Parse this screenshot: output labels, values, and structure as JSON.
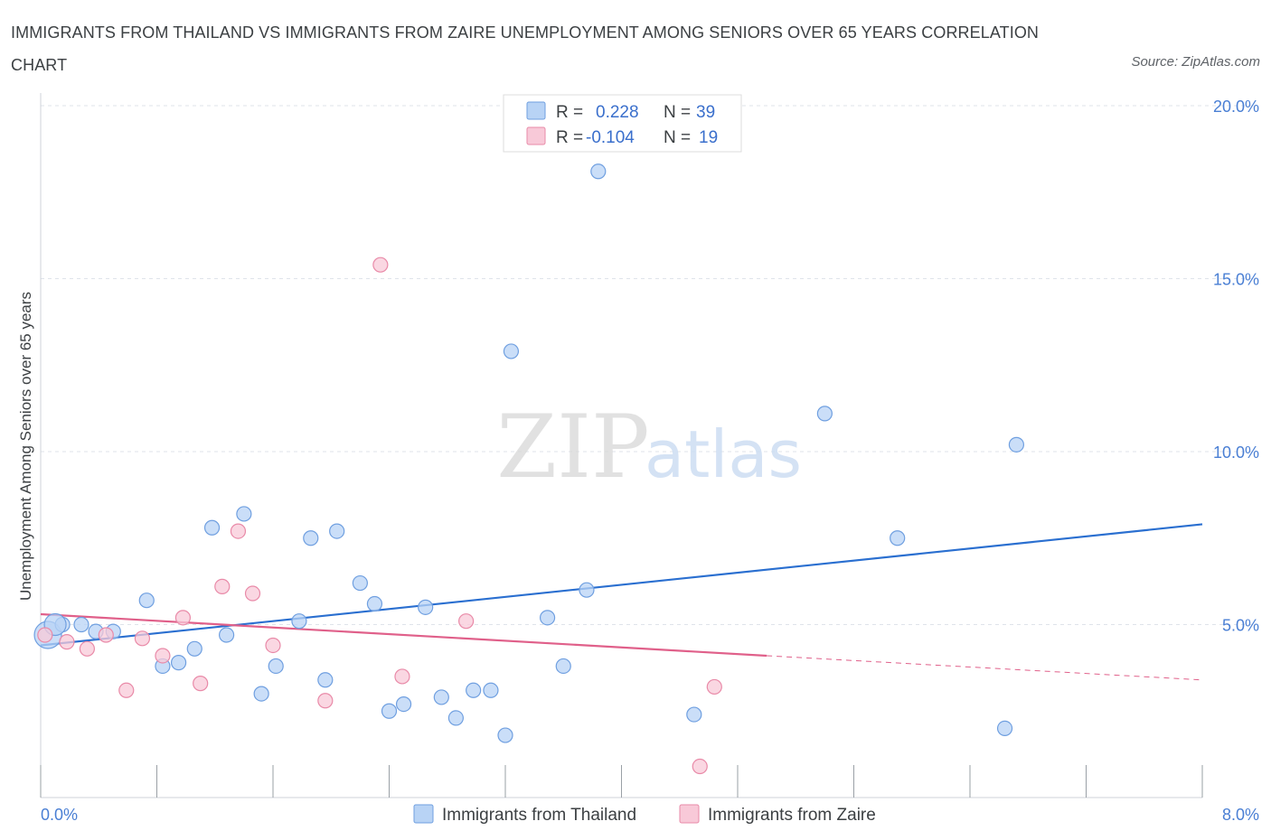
{
  "title": "IMMIGRANTS FROM THAILAND VS IMMIGRANTS FROM ZAIRE UNEMPLOYMENT AMONG SENIORS OVER 65 YEARS CORRELATION CHART",
  "source": "Source: ZipAtlas.com",
  "watermark": {
    "zip": "ZIP",
    "atlas": "atlas"
  },
  "colors": {
    "thailand_fill": "#b8d3f5",
    "thailand_stroke": "#6f9fe0",
    "thailand_line": "#2a6fd0",
    "zaire_fill": "#f8c9d8",
    "zaire_stroke": "#e98aa8",
    "zaire_line": "#e0608a",
    "grid": "#dfe3ea",
    "tick_text": "#4a7fd4"
  },
  "legend": {
    "rows": [
      {
        "r_label": "R =",
        "r_value": "0.228",
        "n_label": "N =",
        "n_value": "39"
      },
      {
        "r_label": "R =",
        "r_value": "-0.104",
        "n_label": "N =",
        "n_value": "19"
      }
    ]
  },
  "chart_data": {
    "type": "scatter",
    "title": "IMMIGRANTS FROM THAILAND VS IMMIGRANTS FROM ZAIRE UNEMPLOYMENT AMONG SENIORS OVER 65 YEARS CORRELATION CHART",
    "xlabel": "",
    "ylabel": "Unemployment Among Seniors over 65 years",
    "xlim": [
      0,
      8
    ],
    "ylim": [
      0,
      20
    ],
    "x_tick_labels": [
      "0.0%",
      "8.0%"
    ],
    "y_ticks": [
      5,
      10,
      15,
      20
    ],
    "y_tick_labels": [
      "5.0%",
      "10.0%",
      "15.0%",
      "20.0%"
    ],
    "series": [
      {
        "name": "Immigrants from Thailand",
        "R": 0.228,
        "N": 39,
        "points": [
          [
            0.05,
            4.7
          ],
          [
            0.15,
            5.0
          ],
          [
            0.28,
            5.0
          ],
          [
            0.38,
            4.8
          ],
          [
            0.5,
            4.8
          ],
          [
            0.73,
            5.7
          ],
          [
            0.84,
            3.8
          ],
          [
            0.95,
            3.9
          ],
          [
            1.06,
            4.3
          ],
          [
            1.18,
            7.8
          ],
          [
            1.28,
            4.7
          ],
          [
            1.4,
            8.2
          ],
          [
            1.52,
            3.0
          ],
          [
            1.62,
            3.8
          ],
          [
            1.78,
            5.1
          ],
          [
            1.86,
            7.5
          ],
          [
            1.96,
            3.4
          ],
          [
            2.04,
            7.7
          ],
          [
            2.2,
            6.2
          ],
          [
            2.3,
            5.6
          ],
          [
            2.4,
            2.5
          ],
          [
            2.5,
            2.7
          ],
          [
            2.65,
            5.5
          ],
          [
            2.76,
            2.9
          ],
          [
            2.86,
            2.3
          ],
          [
            2.98,
            3.1
          ],
          [
            3.1,
            3.1
          ],
          [
            3.2,
            1.8
          ],
          [
            3.24,
            12.9
          ],
          [
            3.49,
            5.2
          ],
          [
            3.6,
            3.8
          ],
          [
            3.76,
            6.0
          ],
          [
            3.84,
            18.1
          ],
          [
            4.5,
            2.4
          ],
          [
            5.4,
            11.1
          ],
          [
            5.9,
            7.5
          ],
          [
            6.64,
            2.0
          ],
          [
            6.72,
            10.2
          ],
          [
            0.1,
            5.0
          ]
        ]
      },
      {
        "name": "Immigrants from Zaire",
        "R": -0.104,
        "N": 19,
        "points": [
          [
            0.03,
            4.7
          ],
          [
            0.18,
            4.5
          ],
          [
            0.32,
            4.3
          ],
          [
            0.45,
            4.7
          ],
          [
            0.59,
            3.1
          ],
          [
            0.7,
            4.6
          ],
          [
            0.84,
            4.1
          ],
          [
            0.98,
            5.2
          ],
          [
            1.1,
            3.3
          ],
          [
            1.25,
            6.1
          ],
          [
            1.36,
            7.7
          ],
          [
            1.46,
            5.9
          ],
          [
            1.6,
            4.4
          ],
          [
            1.96,
            2.8
          ],
          [
            2.34,
            15.4
          ],
          [
            2.49,
            3.5
          ],
          [
            2.93,
            5.1
          ],
          [
            4.54,
            0.9
          ],
          [
            4.64,
            3.2
          ]
        ]
      }
    ],
    "trendlines": [
      {
        "series": "Immigrants from Thailand",
        "x_start": 0.0,
        "y_start": 4.4,
        "x_end": 8.0,
        "y_end": 7.9,
        "style": "solid"
      },
      {
        "series": "Immigrants from Zaire",
        "x_start": 0.0,
        "y_start": 5.3,
        "x_end": 5.0,
        "y_end": 4.1,
        "style": "solid"
      },
      {
        "series": "Immigrants from Zaire",
        "x_start": 5.0,
        "y_start": 4.1,
        "x_end": 8.0,
        "y_end": 3.4,
        "style": "dashed"
      }
    ],
    "legend_position": "top-center",
    "grid": true
  }
}
